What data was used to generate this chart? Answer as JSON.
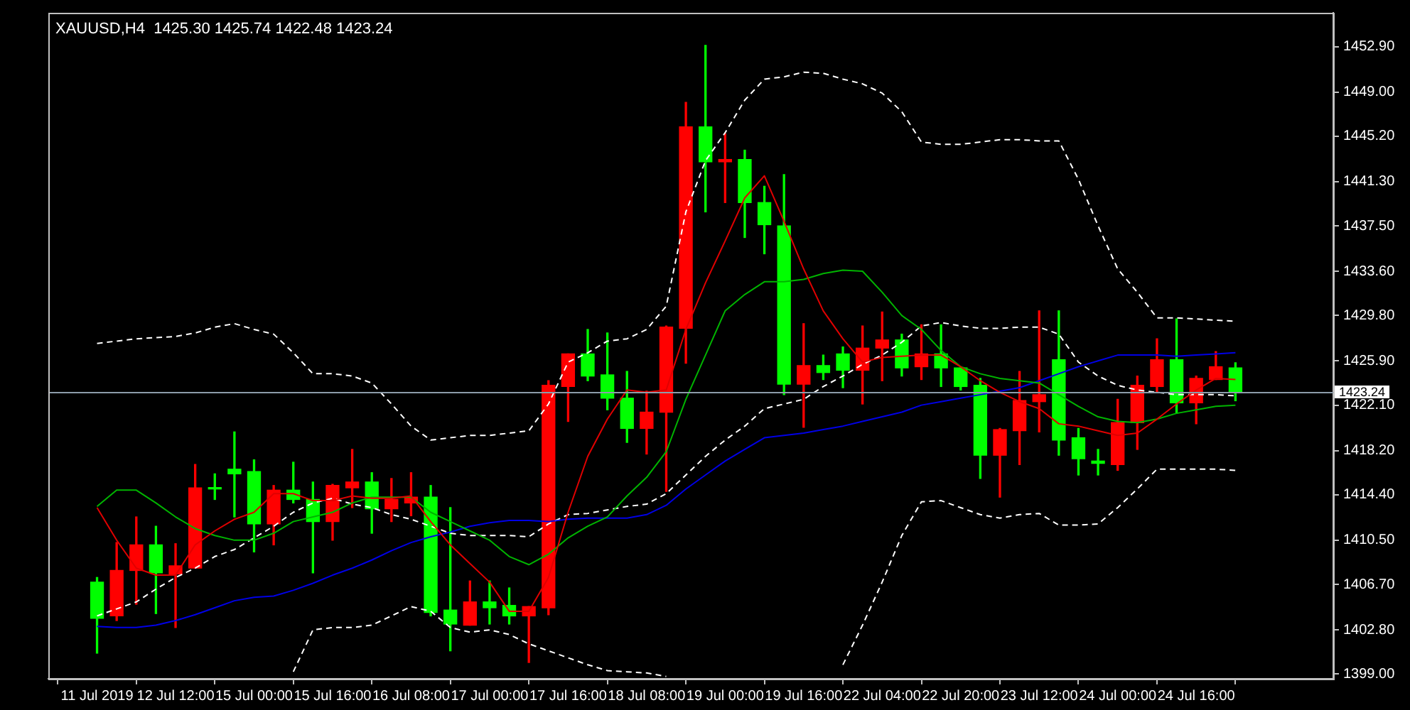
{
  "chart_data": {
    "type": "candlestick",
    "title": "XAUUSD,H4  1425.30 1425.74 1422.48 1423.24",
    "categories": [
      "11 Jul 2019",
      null,
      null,
      null,
      "12 Jul 12:00",
      null,
      null,
      null,
      "15 Jul 00:00",
      null,
      null,
      null,
      "15 Jul 16:00",
      null,
      null,
      null,
      "16 Jul 08:00",
      null,
      null,
      null,
      "17 Jul 00:00",
      null,
      null,
      null,
      "17 Jul 16:00",
      null,
      null,
      null,
      "18 Jul 08:00",
      null,
      null,
      null,
      "19 Jul 00:00",
      null,
      null,
      null,
      "19 Jul 16:00",
      null,
      null,
      null,
      "22 Jul 04:00",
      null,
      null,
      null,
      "22 Jul 20:00",
      null,
      null,
      null,
      "23 Jul 12:00",
      null,
      null,
      null,
      "24 Jul 00:00",
      null,
      null,
      null,
      "24 Jul 16:00",
      null,
      null
    ],
    "ylim": [
      1398.6,
      1455.8
    ],
    "yticks": [
      {
        "value": 1399,
        "label": "1399.00"
      },
      {
        "value": 1402.8,
        "label": "1402.80"
      },
      {
        "value": 1406.7,
        "label": "1406.70"
      },
      {
        "value": 1410.5,
        "label": "1410.50"
      },
      {
        "value": 1414.4,
        "label": "1414.40"
      },
      {
        "value": 1418.2,
        "label": "1418.20"
      },
      {
        "value": 1422.1,
        "label": "1422.10"
      },
      {
        "value": 1425.9,
        "label": "1425.90"
      },
      {
        "value": 1429.8,
        "label": "1429.80"
      },
      {
        "value": 1433.6,
        "label": "1433.60"
      },
      {
        "value": 1437.5,
        "label": "1437.50"
      },
      {
        "value": 1441.3,
        "label": "1441.30"
      },
      {
        "value": 1445.2,
        "label": "1445.20"
      },
      {
        "value": 1449,
        "label": "1449.00"
      },
      {
        "value": 1452.9,
        "label": "1452.90"
      }
    ],
    "ohlc": [
      [
        1406.9,
        1407.3,
        1400.8,
        1403.8
      ],
      [
        1404.0,
        1410.3,
        1403.6,
        1407.9
      ],
      [
        1407.9,
        1412.5,
        1405.0,
        1410.1
      ],
      [
        1410.1,
        1411.7,
        1404.2,
        1407.7
      ],
      [
        1407.6,
        1410.2,
        1403.0,
        1408.3
      ],
      [
        1408.1,
        1417.0,
        1408.1,
        1415.0
      ],
      [
        1415.0,
        1416.2,
        1414.0,
        1414.9
      ],
      [
        1416.6,
        1419.8,
        1412.5,
        1416.2
      ],
      [
        1416.4,
        1417.4,
        1409.5,
        1411.9
      ],
      [
        1411.9,
        1415.2,
        1410.1,
        1414.8
      ],
      [
        1414.8,
        1417.2,
        1413.7,
        1414.0
      ],
      [
        1414.0,
        1415.5,
        1407.7,
        1412.1
      ],
      [
        1412.1,
        1415.3,
        1410.5,
        1415.2
      ],
      [
        1415.0,
        1418.3,
        1413.3,
        1415.5
      ],
      [
        1415.5,
        1416.3,
        1411.1,
        1413.2
      ],
      [
        1413.2,
        1415.8,
        1412.1,
        1414.0
      ],
      [
        1413.7,
        1416.3,
        1412.6,
        1414.2
      ],
      [
        1414.2,
        1415.2,
        1404.0,
        1404.3
      ],
      [
        1404.5,
        1413.3,
        1401.0,
        1403.3
      ],
      [
        1403.2,
        1407.0,
        1403.2,
        1405.2
      ],
      [
        1405.2,
        1407.0,
        1403.3,
        1404.7
      ],
      [
        1404.9,
        1406.4,
        1403.3,
        1404.0
      ],
      [
        1404.0,
        1404.8,
        1400.0,
        1404.8
      ],
      [
        1404.7,
        1424.2,
        1404.1,
        1423.8
      ],
      [
        1423.7,
        1426.5,
        1420.7,
        1426.5
      ],
      [
        1426.5,
        1428.6,
        1424.2,
        1424.6
      ],
      [
        1424.7,
        1428.3,
        1421.7,
        1422.7
      ],
      [
        1422.7,
        1425.0,
        1418.9,
        1420.1
      ],
      [
        1420.1,
        1423.3,
        1417.9,
        1421.5
      ],
      [
        1421.5,
        1428.9,
        1414.7,
        1428.8
      ],
      [
        1428.7,
        1448.1,
        1425.7,
        1446.0
      ],
      [
        1446.0,
        1453.0,
        1438.7,
        1443.0
      ],
      [
        1443.0,
        1445.4,
        1439.5,
        1443.2
      ],
      [
        1443.2,
        1444.0,
        1436.5,
        1439.5
      ],
      [
        1439.5,
        1440.9,
        1435.1,
        1437.6
      ],
      [
        1437.5,
        1441.9,
        1423.0,
        1423.9
      ],
      [
        1423.9,
        1429.1,
        1420.2,
        1425.5
      ],
      [
        1425.5,
        1426.4,
        1424.3,
        1424.9
      ],
      [
        1426.5,
        1427.1,
        1423.6,
        1425.1
      ],
      [
        1425.1,
        1428.9,
        1422.2,
        1427.0
      ],
      [
        1427.0,
        1430.1,
        1424.2,
        1427.7
      ],
      [
        1427.7,
        1428.2,
        1424.6,
        1425.3
      ],
      [
        1425.4,
        1429.0,
        1424.3,
        1426.5
      ],
      [
        1426.5,
        1429.0,
        1423.7,
        1425.3
      ],
      [
        1425.3,
        1425.3,
        1423.4,
        1423.7
      ],
      [
        1423.8,
        1424.4,
        1415.8,
        1417.8
      ],
      [
        1417.8,
        1420.1,
        1414.2,
        1420.0
      ],
      [
        1419.9,
        1425.0,
        1417.0,
        1422.5
      ],
      [
        1422.4,
        1430.2,
        1419.8,
        1423.0
      ],
      [
        1426.0,
        1430.2,
        1417.8,
        1419.1
      ],
      [
        1419.3,
        1420.1,
        1416.1,
        1417.5
      ],
      [
        1417.3,
        1418.3,
        1416.1,
        1417.1
      ],
      [
        1417.0,
        1422.6,
        1416.5,
        1420.6
      ],
      [
        1420.6,
        1424.6,
        1418.3,
        1423.8
      ],
      [
        1423.7,
        1427.8,
        1423.2,
        1426.0
      ],
      [
        1426.0,
        1429.5,
        1421.4,
        1422.3
      ],
      [
        1422.3,
        1424.6,
        1420.5,
        1424.4
      ],
      [
        1424.3,
        1426.7,
        1424.3,
        1425.4
      ],
      [
        1425.3,
        1425.74,
        1422.48,
        1423.24
      ]
    ],
    "colors": [
      "#00ff00",
      "#ff0000",
      "#ff0000",
      "#00ff00",
      "#ff0000",
      "#ff0000",
      "#00ff00",
      "#00ff00",
      "#00ff00",
      "#ff0000",
      "#00ff00",
      "#00ff00",
      "#ff0000",
      "#ff0000",
      "#00ff00",
      "#ff0000",
      "#ff0000",
      "#00ff00",
      "#00ff00",
      "#ff0000",
      "#00ff00",
      "#00ff00",
      "#ff0000",
      "#ff0000",
      "#ff0000",
      "#00ff00",
      "#00ff00",
      "#00ff00",
      "#ff0000",
      "#ff0000",
      "#ff0000",
      "#00ff00",
      "#ff0000",
      "#00ff00",
      "#00ff00",
      "#00ff00",
      "#ff0000",
      "#00ff00",
      "#00ff00",
      "#ff0000",
      "#ff0000",
      "#00ff00",
      "#ff0000",
      "#00ff00",
      "#00ff00",
      "#00ff00",
      "#ff0000",
      "#ff0000",
      "#ff0000",
      "#00ff00",
      "#00ff00",
      "#00ff00",
      "#ff0000",
      "#ff0000",
      "#ff0000",
      "#00ff00",
      "#ff0000",
      "#ff0000",
      "#00ff00"
    ],
    "series": [
      {
        "type": "line",
        "color": "#e00000",
        "values": [
          1413.3,
          1410.5,
          1408.1,
          1407.5,
          1407.5,
          1410.1,
          1411.3,
          1412.3,
          1412.9,
          1414.5,
          1414.5,
          1413.9,
          1413.9,
          1414.3,
          1414.1,
          1414.1,
          1414.3,
          1412.1,
          1410.1,
          1408.5,
          1406.9,
          1404.4,
          1404.4,
          1407.3,
          1412.9,
          1417.7,
          1420.9,
          1423.4,
          1423.2,
          1423.4,
          1428.6,
          1432.6,
          1436.2,
          1439.9,
          1441.8,
          1437.9,
          1433.8,
          1430.2,
          1427.8,
          1425.8,
          1426.2,
          1426.3,
          1426.4,
          1426.4,
          1425.4,
          1424.2,
          1423.2,
          1422.4,
          1421.8,
          1420.5,
          1420.3,
          1419.9,
          1419.5,
          1419.7,
          1420.9,
          1422.2,
          1423.4,
          1424.4,
          1424.3
        ]
      },
      {
        "type": "line",
        "color": "#00b400",
        "values": [
          1413.4,
          1414.8,
          1414.8,
          1413.7,
          1412.5,
          1411.5,
          1410.9,
          1410.5,
          1410.5,
          1411.1,
          1412.1,
          1412.5,
          1412.9,
          1413.7,
          1414.2,
          1414.2,
          1414.2,
          1412.9,
          1412.1,
          1411.3,
          1410.5,
          1409.1,
          1408.4,
          1409.3,
          1410.7,
          1411.7,
          1412.5,
          1414.3,
          1415.9,
          1418.1,
          1422.6,
          1426.4,
          1430.2,
          1431.6,
          1432.7,
          1432.7,
          1432.9,
          1433.4,
          1433.7,
          1433.6,
          1431.8,
          1429.8,
          1428.6,
          1426.8,
          1425.4,
          1424.8,
          1424.4,
          1424.2,
          1424.0,
          1423.0,
          1422.0,
          1421.1,
          1420.7,
          1420.6,
          1420.9,
          1421.4,
          1421.7,
          1422.0,
          1422.1
        ]
      },
      {
        "type": "line",
        "color": "#0000e6",
        "values": [
          1403.1,
          1403.0,
          1403.0,
          1403.2,
          1403.6,
          1404.1,
          1404.7,
          1405.3,
          1405.6,
          1405.7,
          1406.2,
          1406.8,
          1407.5,
          1408.1,
          1408.8,
          1409.6,
          1410.3,
          1410.8,
          1411.2,
          1411.7,
          1412.0,
          1412.2,
          1412.2,
          1412.1,
          1412.3,
          1412.4,
          1412.4,
          1412.4,
          1412.7,
          1413.5,
          1414.9,
          1416.1,
          1417.3,
          1418.3,
          1419.3,
          1419.5,
          1419.7,
          1420.0,
          1420.3,
          1420.7,
          1421.1,
          1421.5,
          1422.1,
          1422.4,
          1422.7,
          1423.0,
          1423.3,
          1423.6,
          1424.2,
          1424.8,
          1425.4,
          1425.9,
          1426.4,
          1426.4,
          1426.4,
          1426.3,
          1426.4,
          1426.5,
          1426.6
        ]
      },
      {
        "type": "line",
        "color": "#ffffff",
        "line_style": "dashed",
        "values": [
          1427.4,
          1427.6,
          1427.8,
          1427.9,
          1428.0,
          1428.3,
          1428.8,
          1429.1,
          1428.6,
          1428.2,
          1426.6,
          1424.8,
          1424.8,
          1424.6,
          1424.0,
          1422.2,
          1420.3,
          1419.1,
          1419.3,
          1419.5,
          1419.5,
          1419.7,
          1419.9,
          1422.2,
          1425.8,
          1426.6,
          1427.6,
          1427.8,
          1428.6,
          1430.6,
          1438.7,
          1443.1,
          1445.5,
          1448.3,
          1450.1,
          1450.3,
          1450.7,
          1450.6,
          1450.1,
          1449.7,
          1448.9,
          1447.3,
          1444.7,
          1444.5,
          1444.5,
          1444.7,
          1444.9,
          1444.9,
          1444.8,
          1444.8,
          1441.5,
          1437.5,
          1433.8,
          1431.8,
          1429.6,
          1429.6,
          1429.5,
          1429.4,
          1429.3
        ]
      },
      {
        "type": "line",
        "color": "#ffffff",
        "line_style": "dashed",
        "values": [
          1404.0,
          1404.6,
          1405.2,
          1406.3,
          1407.3,
          1408.1,
          1409.1,
          1409.7,
          1410.7,
          1411.7,
          1412.9,
          1413.7,
          1414.1,
          1413.6,
          1413.3,
          1412.7,
          1412.3,
          1411.7,
          1411.1,
          1410.9,
          1410.9,
          1410.9,
          1410.8,
          1411.9,
          1412.7,
          1412.8,
          1413.1,
          1413.4,
          1413.6,
          1414.5,
          1416.1,
          1417.7,
          1419.1,
          1420.3,
          1421.8,
          1422.2,
          1422.6,
          1423.7,
          1424.6,
          1425.6,
          1426.4,
          1427.5,
          1428.9,
          1429.2,
          1428.9,
          1428.7,
          1428.7,
          1428.8,
          1428.8,
          1428.2,
          1425.8,
          1424.6,
          1423.8,
          1423.4,
          1423.2,
          1423.0,
          1423.0,
          1423.0,
          1422.9
        ]
      },
      {
        "type": "line",
        "color": "#ffffff",
        "line_style": "dashed",
        "values": [
          null,
          null,
          null,
          null,
          null,
          null,
          null,
          null,
          null,
          null,
          1399.2,
          1402.8,
          1403.0,
          1403.0,
          1403.2,
          1404.0,
          1404.8,
          1404.4,
          1403.0,
          1402.6,
          1402.8,
          1402.4,
          1401.6,
          1401.0,
          1400.4,
          1399.8,
          1399.3,
          1399.2,
          1399.1,
          1398.8,
          null,
          null,
          null,
          null,
          null,
          null,
          null,
          null,
          1399.8,
          1403.2,
          1406.9,
          1410.9,
          1413.8,
          1413.9,
          1413.3,
          1412.7,
          1412.4,
          1412.7,
          1412.8,
          1411.8,
          1411.8,
          1411.9,
          1413.3,
          1414.9,
          1416.6,
          1416.6,
          1416.6,
          1416.6,
          1416.5
        ]
      }
    ],
    "ref_lines": [
      {
        "axis": "y",
        "value": 1423.24,
        "label": "1423.24",
        "color": "#8c9caa"
      }
    ]
  }
}
